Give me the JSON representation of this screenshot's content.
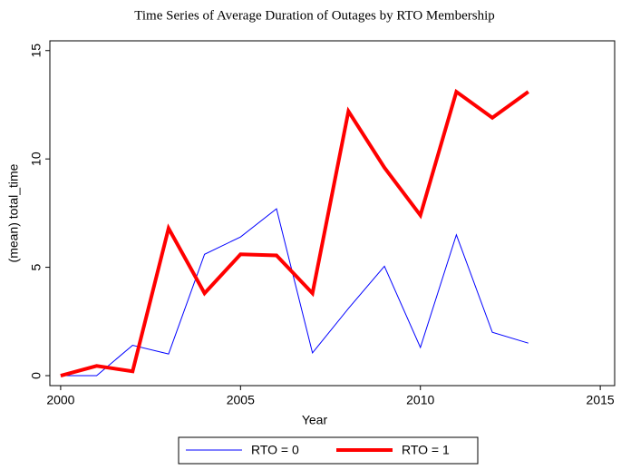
{
  "chart_data": {
    "type": "line",
    "title": "Time Series of Average Duration of Outages by RTO Membership",
    "x_label": "Year",
    "y_label": "(mean) total_time",
    "x": [
      2000,
      2001,
      2002,
      2003,
      2004,
      2005,
      2006,
      2007,
      2008,
      2009,
      2010,
      2011,
      2012,
      2013
    ],
    "series": [
      {
        "name": "RTO = 0",
        "color": "#0000ff",
        "line_width": 1,
        "values": [
          0,
          0,
          1.4,
          1.0,
          5.6,
          6.4,
          7.7,
          1.05,
          3.1,
          5.05,
          1.3,
          6.5,
          2.0,
          1.5
        ]
      },
      {
        "name": "RTO = 1",
        "color": "#ff0000",
        "line_width": 4,
        "values": [
          0,
          0.45,
          0.2,
          6.8,
          3.8,
          5.6,
          5.55,
          3.8,
          12.2,
          9.6,
          7.4,
          13.1,
          11.9,
          13.1
        ]
      }
    ],
    "xlim": [
      1999.7,
      2015.4
    ],
    "xticks": [
      2000,
      2005,
      2010,
      2015
    ],
    "ylim": [
      -0.46,
      15.45
    ],
    "yticks": [
      0,
      5,
      10,
      15
    ],
    "grid": false,
    "legend": "bottom"
  }
}
